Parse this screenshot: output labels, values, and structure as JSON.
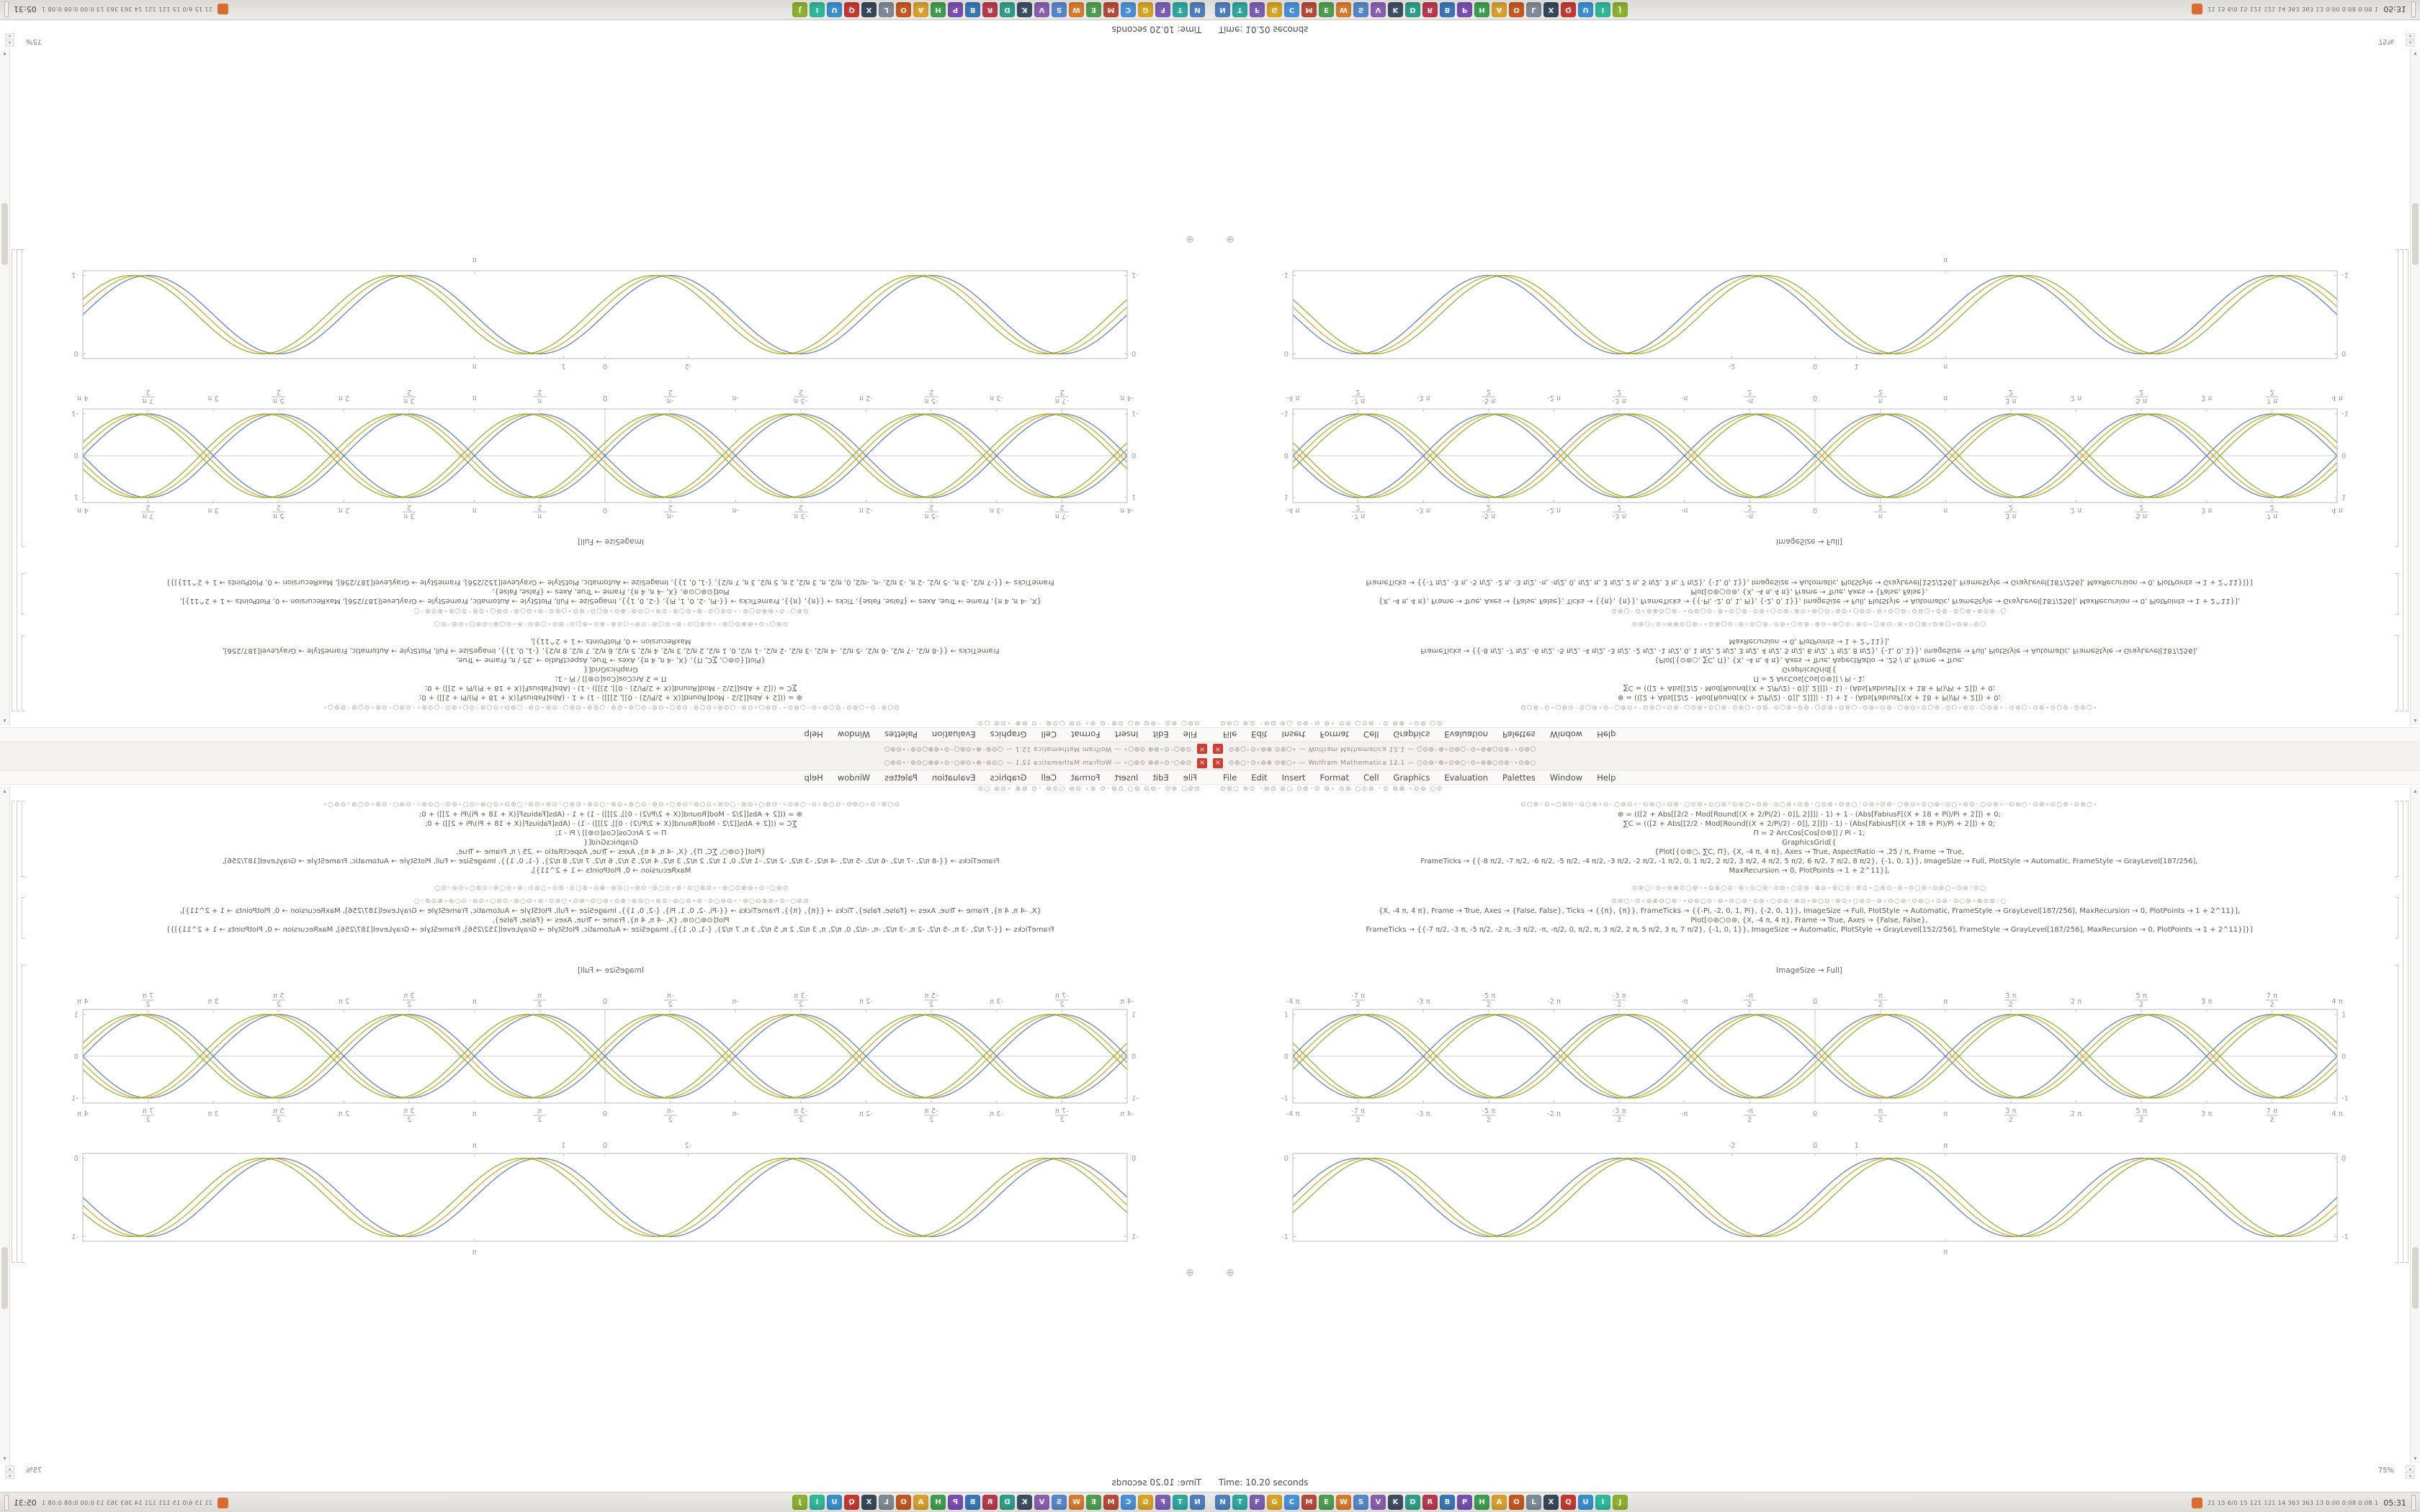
{
  "window": {
    "title": "⊙⊚○◦⊙∘⊚⊕ ⊙⊚○∘ — Wolfram Mathematica 12.1 — ○⊙⊚◦⊕∘⊙⊚○◦⊙∘⊚⊕○⊙⊚◦∘⊙⊚○",
    "close_glyph": "×",
    "menu_items": [
      "File",
      "Edit",
      "Insert",
      "Format",
      "Cell",
      "Graphics",
      "Evaluation",
      "Palettes",
      "Window",
      "Help"
    ],
    "toolbar_soup": "⊙⊚○ ⊚⊙ ◦⊚⊙ ⊚○ ⊙⊚◦⊙ ⊚∘ ⊙⊚ ○⊙⊚ ◦⊙ ⊚⊕ ∘⊙⊚ ○⊙",
    "zoom_level": "75%",
    "scroll_up_glyph": "▴",
    "scroll_down_glyph": "▾",
    "status_text": "Time: 10.20 seconds"
  },
  "notebook": {
    "insertion_glyph": "⊕",
    "code_cell_1": {
      "lines": [
        {
          "soup": true,
          "text": "⊙○⊚◦⊙∘○⊚⊙◦⊙○⊚∘⊙◦○⊚⊙∘◦⊙⊚○∘⊙⊚◦○⊙⊚∘⊙○⊚◦⊙⊚○∘⊙⊚◦⊙○⊚∘⊙⊚◦○⊙⊚∘⊙⊚○◦⊙⊚∘⊙⊚◦○⊚⊙∘⊙○⊚◦⊙○∘⊚⊙◦○⊙⊚∘◦⊙⊚○◦⊙⊚∘⊙○⊚◦⊙⊚○∘"
        },
        {
          "text": "⊕ = (([2 + Abs[[2/2 - Mod[Round[(X + 2/Pi/2) - 0]], 2]]]) - 1) + 1 - (Abs[FabiusF[(X + 18 + Pi)/Pi + 2]]) + 0;"
        },
        {
          "text": "∑C = (([2 + Abs[[2/2 - Mod[Round[(X + 2/Pi/2) - 0]], 2]]]) - 1) - (Abs[FabiusF[(X + 18 + Pi)/Pi + 2]]) + 0;"
        },
        {
          "text": "Π = 2 ArcCos[Cos[⊙⊚]] / Pi - 1;"
        },
        {
          "text": "GraphicsGrid[{"
        },
        {
          "text": "{Plot[{⊙⊚○, ∑C, Π}, {X, -4 π, 4 π}, Axes → True, AspectRatio → .25 / π, Frame → True,"
        },
        {
          "text": "FrameTicks → {{-8 π/2, -7 π/2, -6 π/2, -5 π/2, -4 π/2, -3 π/2, -2 π/2, -1 π/2, 0, 1 π/2, 2 π/2, 3 π/2, 4 π/2, 5 π/2, 6 π/2, 7 π/2, 8 π/2}, {-1, 0, 1}}, ImageSize → Full, PlotStyle → Automatic, FrameStyle → GrayLevel[187/256],"
        },
        {
          "text": "MaxRecursion → 0, PlotPoints → 1 + 2^11}],"
        }
      ]
    },
    "divider_soup": "⊙⊚○◦⊙∘⊚⊕⊙○⊚◦∘⊙⊚○⊙◦⊚∘⊙○⊚◦⊙⊚∘○⊙⊚◦⊕⊙∘⊚○⊙◦⊚⊙∘○⊚⊙◦⊚∘⊙○⊚◦⊙⊚○∘⊙⊚◦⊙○",
    "code_cell_2": {
      "lines": [
        {
          "soup": true,
          "text": "⊙⊚○◦⊙∘⊚⊕⊙○⊚◦∘⊙⊚○⊙◦⊚∘⊙○⊚◦⊙⊚∘○⊙⊚◦⊕⊙∘⊚○⊙◦⊚⊙∘○⊚⊙◦⊚∘⊙○⊚◦⊙⊚○∘⊙⊚◦⊙○⊚∘⊕⊙⊚◦○"
        },
        {
          "text": "{X, -4 π, 4 π}, Frame → True, Axes → {False, False}, Ticks → {{π}, {π}}, FrameTicks → {{-Pi, -2, 0, 1, Pi}, {-2, 0, 1}}, ImageSize → Full, PlotStyle → Automatic, FrameStyle → GrayLevel[187/256], MaxRecursion → 0, PlotPoints → 1 + 2^11}],"
        },
        {
          "text": "Plot[⊙⊚○⊙⊚, {X, -4 π, 4 π}, Frame → True, Axes → {False, False},"
        },
        {
          "text": "FrameTicks → {{-7 π/2, -3 π, -5 π/2, -2 π, -3 π/2, -π, -π/2, 0, π/2, π, 3 π/2, 2 π, 5 π/2, 3 π, 7 π/2}, {-1, 0, 1}}, ImageSize → Automatic, PlotStyle → GrayLevel[152/256], FrameStyle → GrayLevel[187/256], MaxRecursion → 0, PlotPoints → 1 + 2^11}]}]"
        }
      ]
    },
    "tail_line": "ImageSize → Full]"
  },
  "taskbar": {
    "apps": [
      {
        "glyph": "N",
        "color": "#4f7fbe"
      },
      {
        "glyph": "T",
        "color": "#2fa8a0"
      },
      {
        "glyph": "F",
        "color": "#7a5fb5"
      },
      {
        "glyph": "G",
        "color": "#d9a326"
      },
      {
        "glyph": "C",
        "color": "#4a90d9"
      },
      {
        "glyph": "M",
        "color": "#b84a3a"
      },
      {
        "glyph": "E",
        "color": "#4f9e52"
      },
      {
        "glyph": "W",
        "color": "#d97b2e"
      },
      {
        "glyph": "S",
        "color": "#5588c8"
      },
      {
        "glyph": "V",
        "color": "#8a5fb0"
      },
      {
        "glyph": "K",
        "color": "#3f4f63"
      },
      {
        "glyph": "D",
        "color": "#2f9e8a"
      },
      {
        "glyph": "R",
        "color": "#b83a4f"
      },
      {
        "glyph": "B",
        "color": "#3a77b8"
      },
      {
        "glyph": "P",
        "color": "#7a4fb0"
      },
      {
        "glyph": "H",
        "color": "#3f9e4f"
      },
      {
        "glyph": "A",
        "color": "#d9a030"
      },
      {
        "glyph": "O",
        "color": "#c45a20"
      },
      {
        "glyph": "L",
        "color": "#7f8a94"
      },
      {
        "glyph": "X",
        "color": "#37485c"
      },
      {
        "glyph": "Q",
        "color": "#c43a30"
      },
      {
        "glyph": "U",
        "color": "#3a8fd0"
      },
      {
        "glyph": "I",
        "color": "#2fb89a"
      },
      {
        "glyph": "J",
        "color": "#8fb032"
      }
    ],
    "tray_icon_color": "#d96b2e",
    "tray_stats": "21 15 6/0 15 121 121 14 363 363 13 0:00 0:08 0:08 1",
    "clock": "05:31"
  },
  "colors": {
    "accent_red": "#d23b2e",
    "frame_gray": "#bababa",
    "series_blue": "#5E81B5",
    "series_gold": "#D9A326",
    "series_green": "#8FB032"
  },
  "chart_data": [
    {
      "id": "braid",
      "type": "line",
      "title": "",
      "xlabel": "",
      "ylabel": "",
      "x_range": [
        -12.566,
        12.566
      ],
      "ylim": [
        -1.12,
        1.12
      ],
      "axes": true,
      "grid": false,
      "legend": "none",
      "frame_color": "#bababa",
      "series": [
        {
          "name": "sin(x)",
          "phase": 0,
          "sign": 1,
          "color": "#5E81B5"
        },
        {
          "name": "-sin(x)",
          "phase": 0,
          "sign": -1,
          "color": "#5E81B5"
        },
        {
          "name": "sin(x-0.16)",
          "phase": 0.16,
          "sign": 1,
          "color": "#D9A326"
        },
        {
          "name": "-sin(x-0.16)",
          "phase": 0.16,
          "sign": -1,
          "color": "#D9A326"
        },
        {
          "name": "sin(x-0.32)",
          "phase": 0.32,
          "sign": 1,
          "color": "#8FB032"
        },
        {
          "name": "-sin(x-0.32)",
          "phase": 0.32,
          "sign": -1,
          "color": "#8FB032"
        }
      ],
      "x_ticks": [
        {
          "v": -12.566,
          "t": "-4 π"
        },
        {
          "v": -10.996,
          "n": "-7 π",
          "d": "2"
        },
        {
          "v": -9.425,
          "t": "-3 π"
        },
        {
          "v": -7.854,
          "n": "-5 π",
          "d": "2"
        },
        {
          "v": -6.283,
          "t": "-2 π"
        },
        {
          "v": -4.712,
          "n": "-3 π",
          "d": "2"
        },
        {
          "v": -3.142,
          "t": "-π"
        },
        {
          "v": -1.571,
          "n": "-π",
          "d": "2"
        },
        {
          "v": 0,
          "t": "0"
        },
        {
          "v": 1.571,
          "n": "π",
          "d": "2"
        },
        {
          "v": 3.142,
          "t": "π"
        },
        {
          "v": 4.712,
          "n": "3 π",
          "d": "2"
        },
        {
          "v": 6.283,
          "t": "2 π"
        },
        {
          "v": 7.854,
          "n": "5 π",
          "d": "2"
        },
        {
          "v": 9.425,
          "t": "3 π"
        },
        {
          "v": 10.996,
          "n": "7 π",
          "d": "2"
        },
        {
          "v": 12.566,
          "t": "4 π"
        }
      ],
      "y_ticks": [
        {
          "v": 1,
          "t": "1"
        },
        {
          "v": 0,
          "t": "0"
        },
        {
          "v": -1,
          "t": "-1"
        }
      ]
    },
    {
      "id": "sine",
      "type": "line",
      "title": "",
      "xlabel": "",
      "ylabel": "",
      "x_range": [
        -12.566,
        12.566
      ],
      "ylim": [
        -1.06,
        0.06
      ],
      "axes": false,
      "grid": false,
      "legend": "none",
      "frame_color": "#bababa",
      "series": [
        {
          "name": "sin(x)",
          "phase": 0,
          "sign": 1,
          "scale": 0.5,
          "offset": -0.5,
          "color": "#5E81B5"
        },
        {
          "name": "sin(x-0.2)",
          "phase": 0.2,
          "sign": 1,
          "scale": 0.5,
          "offset": -0.5,
          "color": "#D9A326"
        },
        {
          "name": "sin(x-0.4)",
          "phase": 0.4,
          "sign": 1,
          "scale": 0.5,
          "offset": -0.5,
          "color": "#8FB032"
        }
      ],
      "x_ticks_top": [
        {
          "v": -2,
          "t": "-2"
        },
        {
          "v": 0,
          "t": "0"
        },
        {
          "v": 1,
          "t": "1"
        },
        {
          "v": 3.142,
          "t": "π"
        }
      ],
      "x_ticks_bottom": [
        {
          "v": 3.142,
          "t": "π"
        }
      ],
      "y_ticks": [
        {
          "v": 0,
          "t": "0"
        },
        {
          "v": -1,
          "t": "-1"
        }
      ]
    }
  ]
}
